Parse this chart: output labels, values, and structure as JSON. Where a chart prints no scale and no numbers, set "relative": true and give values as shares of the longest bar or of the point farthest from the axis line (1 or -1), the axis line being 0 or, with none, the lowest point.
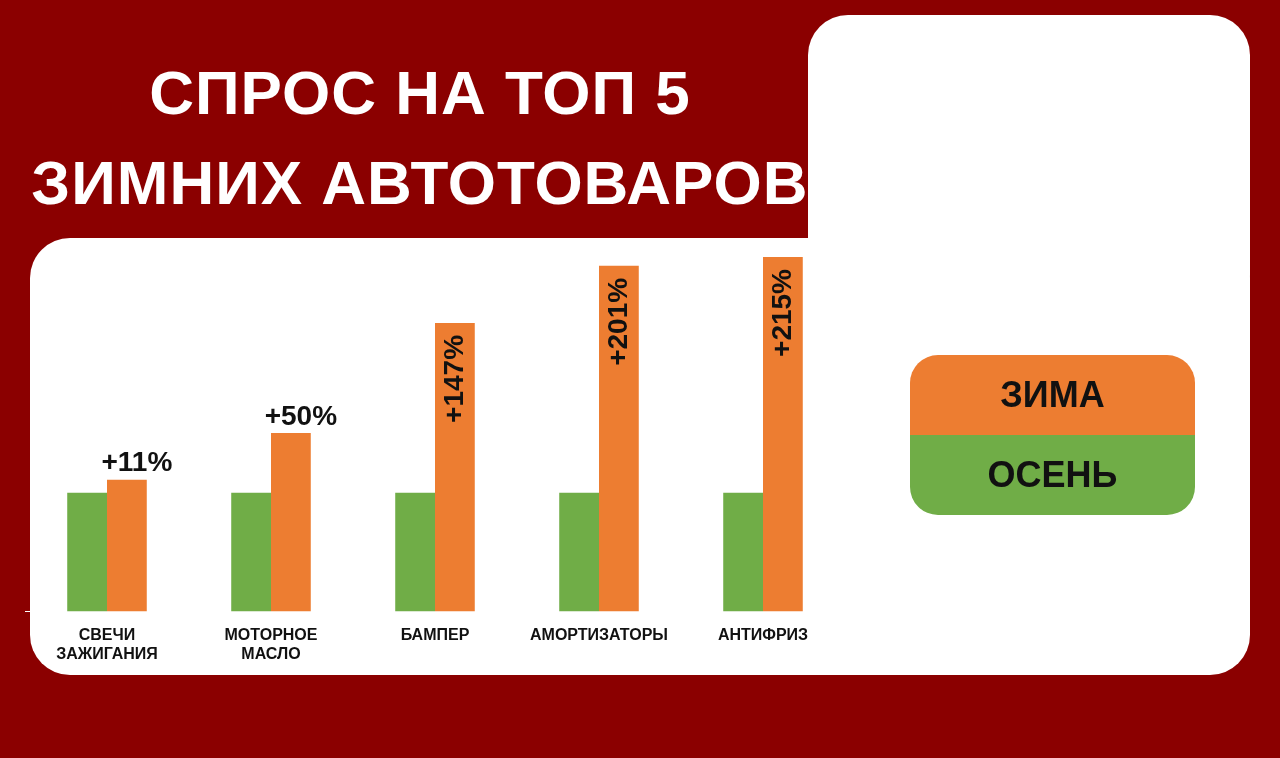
{
  "chart_data": {
    "type": "bar",
    "title": "СПРОС НА ТОП 5 ЗИМНИХ АВТОТОВАРОВ",
    "relative": true,
    "legend": "right",
    "tick_labels": "x",
    "categories": [
      "СВЕЧИ ЗАЖИГАНИЯ",
      "МОТОРНОЕ МАСЛО",
      "БАМПЕР",
      "АМОРТИЗАТОРЫ",
      "АНТИФРИЗ"
    ],
    "series": [
      {
        "name": "ОСЕНЬ",
        "color": "#70ad47",
        "values": [
          0.335,
          0.335,
          0.335,
          0.335,
          0.335
        ]
      },
      {
        "name": "ЗИМА",
        "color": "#ed7d31",
        "values": [
          0.372,
          0.504,
          0.814,
          0.975,
          1
        ]
      }
    ],
    "annotations": [
      {
        "text": "+11%",
        "x": "СВЕЧИ ЗАЖИГАНИЯ",
        "y": 0.372
      },
      {
        "text": "+50%",
        "x": "МОТОРНОЕ МАСЛО",
        "y": 0.504
      },
      {
        "text": "+147%",
        "x": "БАМПЕР",
        "y": 0.814
      },
      {
        "text": "+201%",
        "x": "АМОРТИЗАТОРЫ",
        "y": 0.975
      },
      {
        "text": "+215%",
        "x": "АНТИФРИЗ",
        "y": 1
      }
    ]
  }
}
